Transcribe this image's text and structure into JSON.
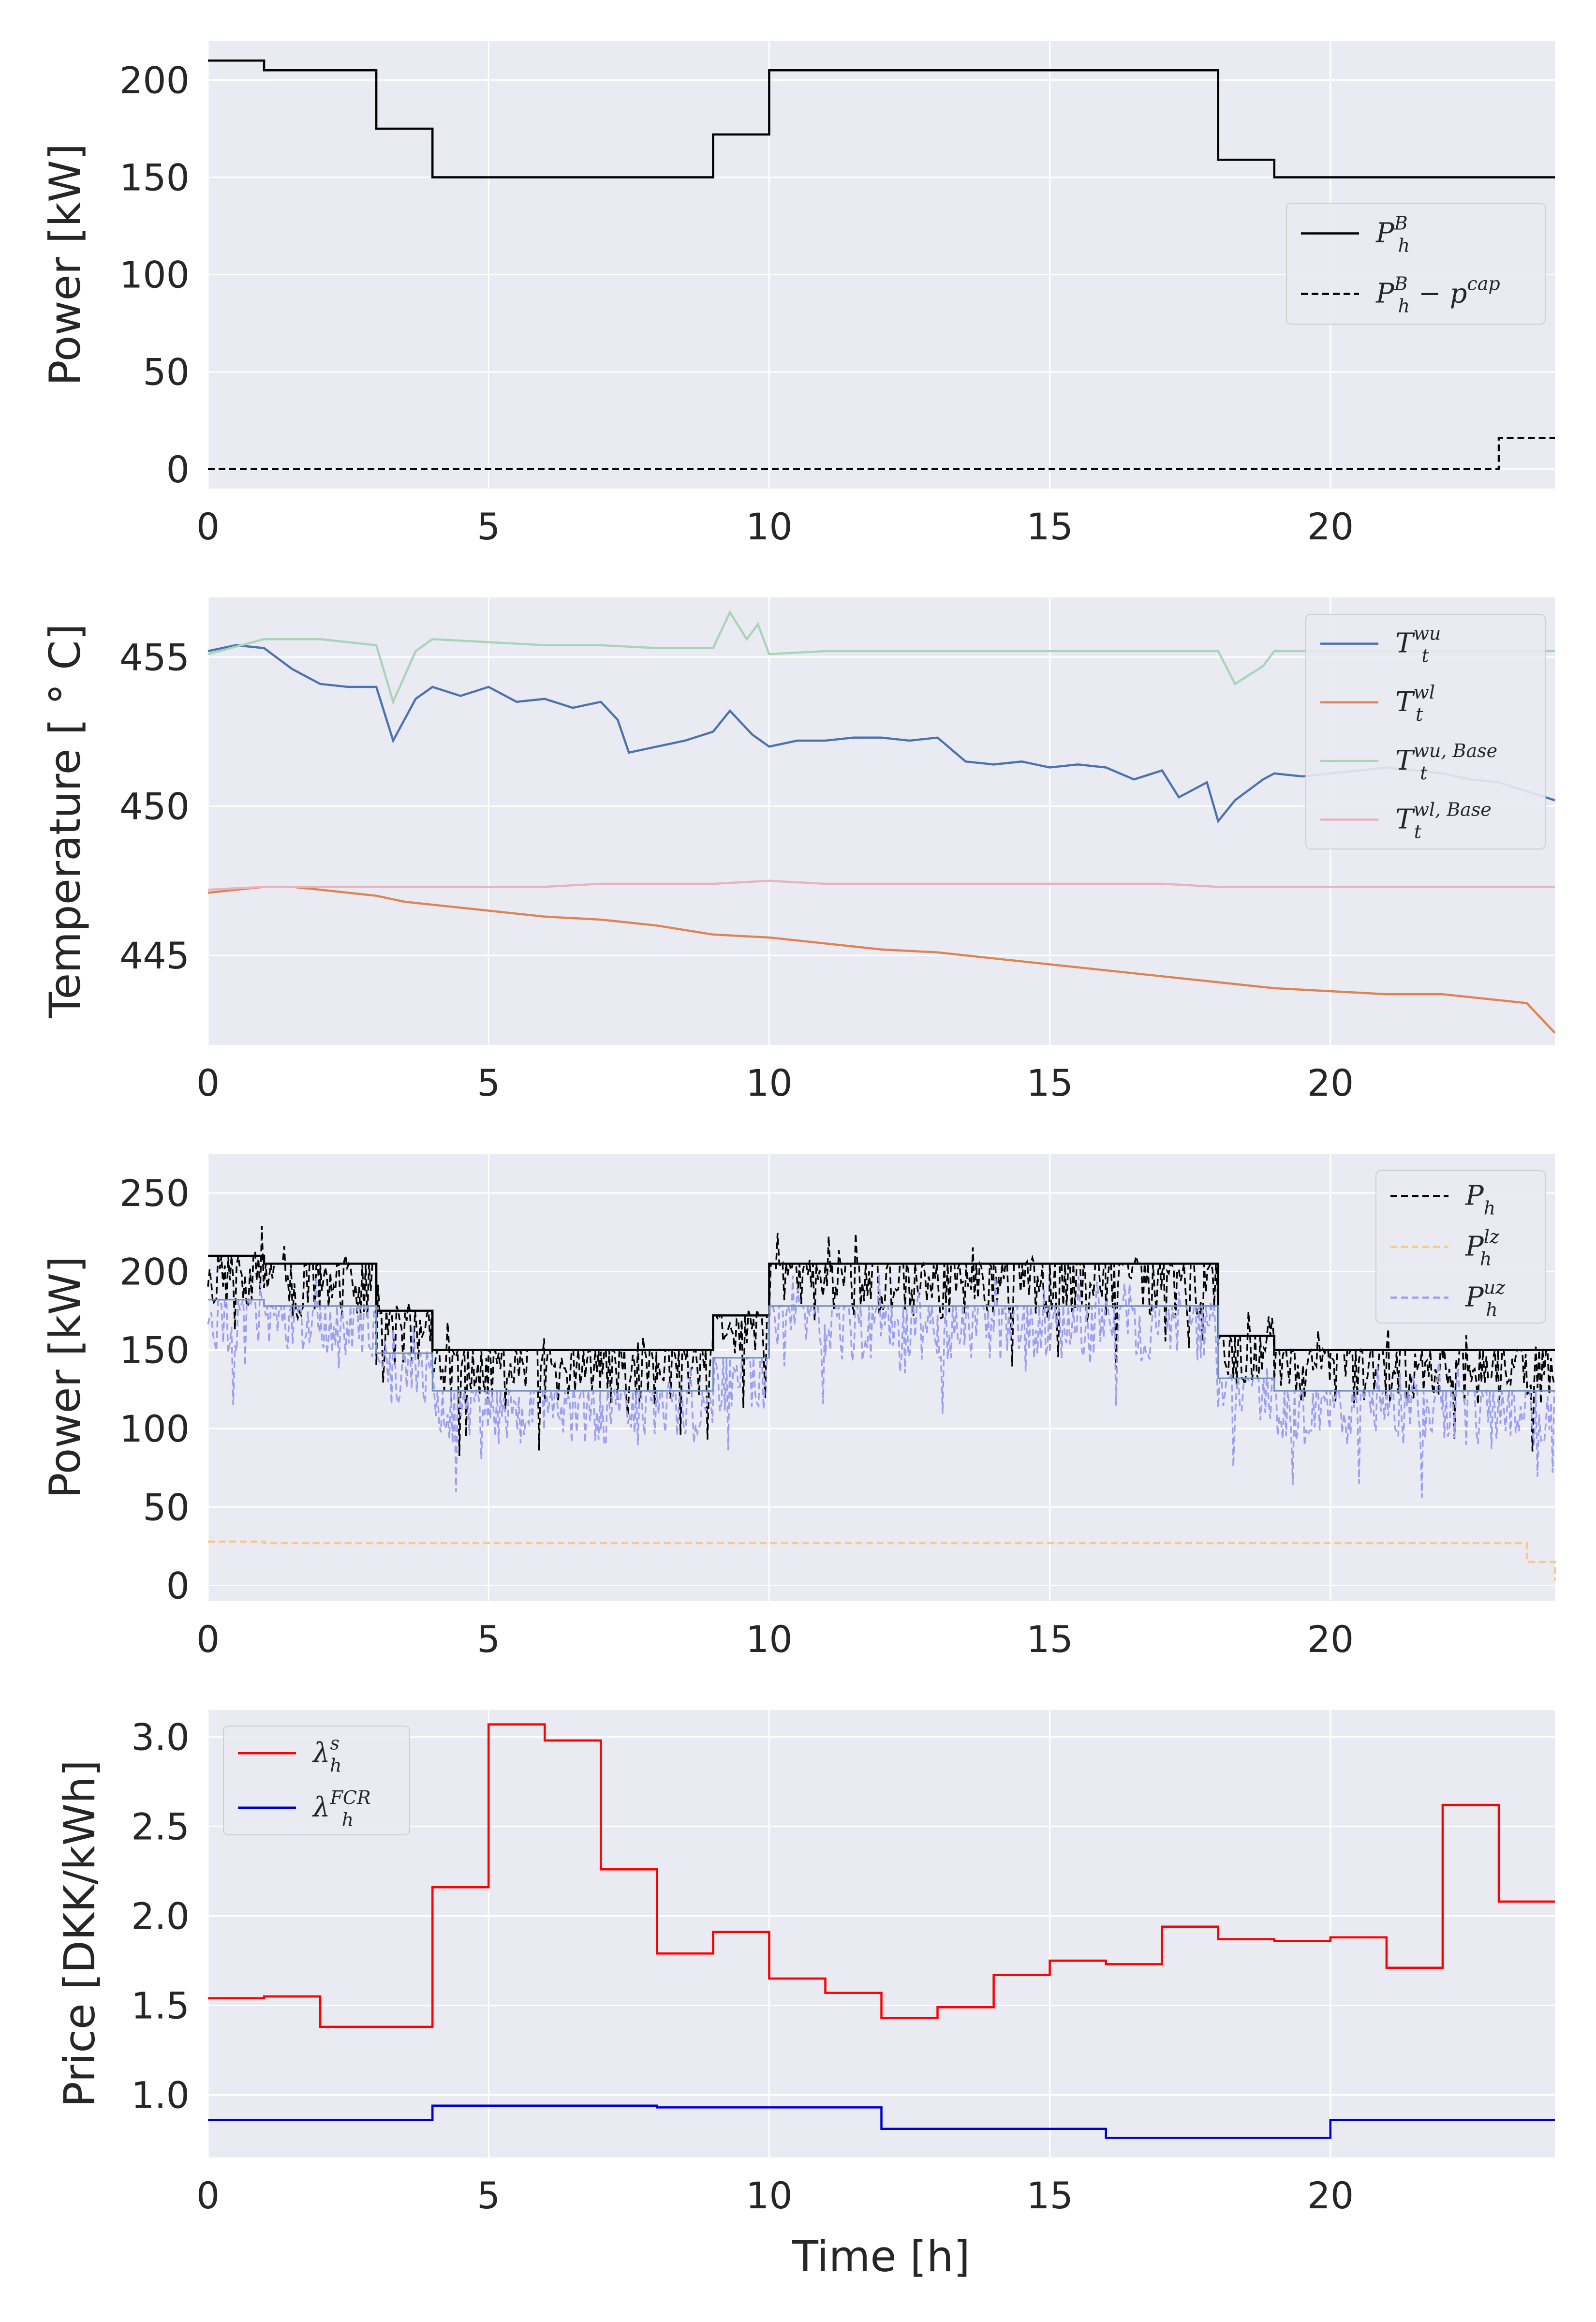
{
  "chart_data": [
    {
      "type": "line",
      "ylabel": "Power [kW]",
      "xlabel": "",
      "xlim": [
        0,
        24
      ],
      "ylim": [
        -10,
        220
      ],
      "xticks": [
        "0",
        "5",
        "10",
        "15",
        "20"
      ],
      "yticks": [
        "0",
        "50",
        "100",
        "150",
        "200"
      ],
      "grid": true,
      "legend_position": "center-right",
      "series": [
        {
          "name": "P_h^B",
          "label_main": "P",
          "label_sub": "h",
          "label_sup": "B",
          "label_extra": "",
          "color": "#000000",
          "dash": "solid",
          "step": true,
          "x": [
            0,
            1,
            2,
            3,
            4,
            5,
            6,
            7,
            8,
            9,
            10,
            11,
            12,
            13,
            14,
            15,
            16,
            17,
            18,
            19,
            20,
            21,
            22,
            23
          ],
          "y": [
            210,
            205,
            205,
            175,
            150,
            150,
            150,
            150,
            150,
            172,
            205,
            205,
            205,
            205,
            205,
            205,
            205,
            205,
            159,
            150,
            150,
            150,
            150,
            150
          ]
        },
        {
          "name": "P_h^B - p^cap",
          "label_main": "P",
          "label_sub": "h",
          "label_sup": "B",
          "label_extra": " − p",
          "label_extra_sup": "cap",
          "color": "#000000",
          "dash": "dashed",
          "step": true,
          "x": [
            0,
            23,
            23
          ],
          "y": [
            0,
            0,
            16
          ]
        }
      ]
    },
    {
      "type": "line",
      "ylabel": "Temperature [ ° C]",
      "xlabel": "",
      "xlim": [
        0,
        24
      ],
      "ylim": [
        442,
        457
      ],
      "xticks": [
        "0",
        "5",
        "10",
        "15",
        "20"
      ],
      "yticks": [
        "445",
        "450",
        "455"
      ],
      "grid": true,
      "legend_position": "upper-right",
      "series": [
        {
          "name": "T_t^wu",
          "label_main": "T",
          "label_sub": "t",
          "label_sup": "wu",
          "color": "#4c72b0",
          "dash": "solid",
          "x": [
            0,
            0.5,
            1,
            1.5,
            2,
            2.5,
            3,
            3.3,
            3.7,
            4,
            4.5,
            5,
            5.5,
            6,
            6.5,
            7,
            7.3,
            7.5,
            8,
            8.5,
            9,
            9.3,
            9.7,
            10,
            10.5,
            11,
            11.5,
            12,
            12.5,
            13,
            13.5,
            14,
            14.5,
            15,
            15.5,
            16,
            16.5,
            17,
            17.3,
            17.8,
            18,
            18.3,
            18.8,
            19,
            19.5,
            20,
            20.5,
            21,
            21.5,
            22,
            22.5,
            23,
            23.5,
            24
          ],
          "y": [
            455.2,
            455.4,
            455.3,
            454.6,
            454.1,
            454,
            454,
            452.2,
            453.6,
            454,
            453.7,
            454,
            453.5,
            453.6,
            453.3,
            453.5,
            452.9,
            451.8,
            452,
            452.2,
            452.5,
            453.2,
            452.4,
            452,
            452.2,
            452.2,
            452.3,
            452.3,
            452.2,
            452.3,
            451.5,
            451.4,
            451.5,
            451.3,
            451.4,
            451.3,
            450.9,
            451.2,
            450.3,
            450.8,
            449.5,
            450.2,
            450.9,
            451.1,
            451,
            451.1,
            451.2,
            451.3,
            451.2,
            451.1,
            450.9,
            450.8,
            450.5,
            450.2
          ]
        },
        {
          "name": "T_t^wl",
          "label_main": "T",
          "label_sub": "t",
          "label_sup": "wl",
          "color": "#dd8452",
          "dash": "solid",
          "x": [
            0,
            0.5,
            1,
            1.5,
            2,
            3,
            3.5,
            4,
            5,
            6,
            7,
            8,
            9,
            10,
            11,
            12,
            13,
            14,
            15,
            16,
            17,
            18,
            19,
            20,
            21,
            22,
            23,
            23.5,
            24
          ],
          "y": [
            447.1,
            447.2,
            447.3,
            447.3,
            447.2,
            447.0,
            446.8,
            446.7,
            446.5,
            446.3,
            446.2,
            446.0,
            445.7,
            445.6,
            445.4,
            445.2,
            445.1,
            444.9,
            444.7,
            444.5,
            444.3,
            444.1,
            443.9,
            443.8,
            443.7,
            443.7,
            443.5,
            443.4,
            442.4
          ]
        },
        {
          "name": "T_t^wu,Base",
          "label_main": "T",
          "label_sub": "t",
          "label_sup": "wu, Base",
          "color": "#a9d4b8",
          "dash": "solid",
          "x": [
            0,
            1,
            2,
            3,
            3.3,
            3.7,
            4,
            5,
            6,
            7,
            8,
            9,
            9.3,
            9.6,
            9.8,
            10,
            11,
            12,
            13,
            14,
            15,
            16,
            17,
            17.5,
            18,
            18.3,
            18.8,
            19,
            20,
            21,
            22,
            23,
            24
          ],
          "y": [
            455.1,
            455.6,
            455.6,
            455.4,
            453.5,
            455.2,
            455.6,
            455.5,
            455.4,
            455.4,
            455.3,
            455.3,
            456.5,
            455.6,
            456.1,
            455.1,
            455.2,
            455.2,
            455.2,
            455.2,
            455.2,
            455.2,
            455.2,
            455.2,
            455.2,
            454.1,
            454.7,
            455.2,
            455.2,
            455.2,
            455.2,
            455.2,
            455.2
          ]
        },
        {
          "name": "T_t^wl,Base",
          "label_main": "T",
          "label_sub": "t",
          "label_sup": "wl, Base",
          "color": "#e8b4bc",
          "dash": "solid",
          "x": [
            0,
            1,
            2,
            3,
            4,
            5,
            6,
            7,
            8,
            9,
            10,
            11,
            12,
            13,
            14,
            15,
            16,
            17,
            18,
            19,
            20,
            21,
            22,
            23,
            24
          ],
          "y": [
            447.2,
            447.3,
            447.3,
            447.3,
            447.3,
            447.3,
            447.3,
            447.4,
            447.4,
            447.4,
            447.5,
            447.4,
            447.4,
            447.4,
            447.4,
            447.4,
            447.4,
            447.4,
            447.3,
            447.3,
            447.3,
            447.3,
            447.3,
            447.3,
            447.3
          ]
        }
      ]
    },
    {
      "type": "line",
      "ylabel": "Power [kW]",
      "xlabel": "",
      "xlim": [
        0,
        24
      ],
      "ylim": [
        -10,
        275
      ],
      "xticks": [
        "0",
        "5",
        "10",
        "15",
        "20"
      ],
      "yticks": [
        "0",
        "50",
        "100",
        "150",
        "200",
        "250"
      ],
      "grid": true,
      "legend_position": "upper-right",
      "series": [
        {
          "name": "P_h",
          "label_main": "P",
          "label_sub": "h",
          "label_sup": "",
          "color": "#000000",
          "dash": "dashed",
          "noisy": true,
          "step": true,
          "x": [
            0,
            1,
            2,
            3,
            4,
            5,
            6,
            7,
            8,
            9,
            10,
            11,
            12,
            13,
            14,
            15,
            16,
            17,
            18,
            19,
            20,
            21,
            22,
            23
          ],
          "y": [
            210,
            205,
            205,
            175,
            150,
            150,
            150,
            150,
            150,
            172,
            205,
            205,
            205,
            205,
            205,
            205,
            205,
            205,
            159,
            150,
            150,
            150,
            150,
            150
          ]
        },
        {
          "name": "P_h^lz",
          "label_main": "P",
          "label_sub": "h",
          "label_sup": "lz",
          "color": "#f5c990",
          "dash": "dashed",
          "step": true,
          "x": [
            0,
            1,
            2,
            3,
            4,
            5,
            6,
            7,
            8,
            9,
            10,
            11,
            12,
            13,
            14,
            15,
            16,
            17,
            18,
            19,
            20,
            21,
            22,
            23,
            23.5,
            24
          ],
          "y": [
            28,
            27,
            27,
            27,
            27,
            27,
            27,
            27,
            27,
            27,
            27,
            27,
            27,
            27,
            27,
            27,
            27,
            27,
            27,
            27,
            27,
            27,
            27,
            27,
            15,
            3
          ]
        },
        {
          "name": "P_h^uz",
          "label_main": "P",
          "label_sub": "h",
          "label_sup": "uz",
          "color": "#9b9ff0",
          "dash": "dashed",
          "noisy": true,
          "step": true,
          "x": [
            0,
            1,
            2,
            3,
            4,
            5,
            6,
            7,
            8,
            9,
            10,
            11,
            12,
            13,
            14,
            15,
            16,
            17,
            18,
            19,
            20,
            21,
            22,
            23
          ],
          "y": [
            182,
            178,
            178,
            148,
            124,
            124,
            124,
            124,
            124,
            145,
            178,
            178,
            178,
            178,
            178,
            178,
            178,
            178,
            132,
            124,
            124,
            124,
            124,
            124
          ]
        }
      ]
    },
    {
      "type": "line",
      "ylabel": "Price [DKK/kWh]",
      "xlabel": "Time [h]",
      "xlim": [
        0,
        24
      ],
      "ylim": [
        0.65,
        3.15
      ],
      "xticks": [
        "0",
        "5",
        "10",
        "15",
        "20"
      ],
      "yticks": [
        "1.0",
        "1.5",
        "2.0",
        "2.5",
        "3.0"
      ],
      "grid": true,
      "legend_position": "upper-left",
      "series": [
        {
          "name": "λ_h^s",
          "label_main": "λ",
          "label_sub": "h",
          "label_sup": "s",
          "color": "#ff0000",
          "dash": "solid",
          "step": true,
          "x": [
            0,
            1,
            2,
            3,
            4,
            5,
            6,
            7,
            8,
            9,
            10,
            11,
            12,
            13,
            14,
            15,
            16,
            17,
            18,
            19,
            20,
            21,
            22,
            23
          ],
          "y": [
            1.54,
            1.55,
            1.38,
            1.38,
            2.16,
            3.07,
            2.98,
            2.26,
            1.79,
            1.91,
            1.65,
            1.57,
            1.43,
            1.49,
            1.67,
            1.75,
            1.73,
            1.94,
            1.87,
            1.86,
            1.88,
            1.71,
            2.62,
            2.08
          ]
        },
        {
          "name": "λ_h^FCR",
          "label_main": "λ",
          "label_sub": "h",
          "label_sup": "FCR",
          "color": "#0000cc",
          "dash": "solid",
          "step": true,
          "x": [
            0,
            4,
            8,
            12,
            16,
            20,
            23
          ],
          "y": [
            0.86,
            0.94,
            0.93,
            0.81,
            0.76,
            0.86,
            0.86
          ]
        }
      ]
    }
  ]
}
